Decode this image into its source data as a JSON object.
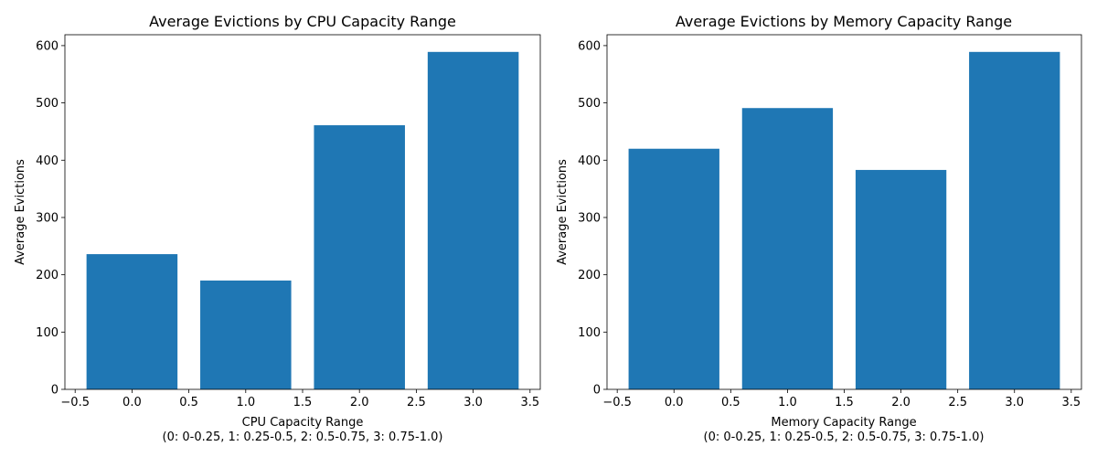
{
  "colors": {
    "bar": "#1f77b4",
    "axis": "#000000",
    "background": "#ffffff"
  },
  "chart_data": [
    {
      "type": "bar",
      "title": "Average Evictions by CPU Capacity Range",
      "xlabel": "CPU Capacity Range",
      "xlabel_line2": "(0: 0-0.25, 1: 0.25-0.5, 2: 0.5-0.75, 3: 0.75-1.0)",
      "ylabel": "Average Evictions",
      "x": [
        0,
        1,
        2,
        3
      ],
      "values": [
        236,
        190,
        461,
        589
      ],
      "bar_width": 0.8,
      "xlim": [
        -0.59,
        3.59
      ],
      "ylim": [
        0,
        619
      ],
      "xticks": [
        -0.5,
        0.0,
        0.5,
        1.0,
        1.5,
        2.0,
        2.5,
        3.0,
        3.5
      ],
      "xtick_labels": [
        "−0.5",
        "0.0",
        "0.5",
        "1.0",
        "1.5",
        "2.0",
        "2.5",
        "3.0",
        "3.5"
      ],
      "yticks": [
        0,
        100,
        200,
        300,
        400,
        500,
        600
      ],
      "ytick_labels": [
        "0",
        "100",
        "200",
        "300",
        "400",
        "500",
        "600"
      ],
      "grid": false,
      "legend": "none"
    },
    {
      "type": "bar",
      "title": "Average Evictions by Memory Capacity Range",
      "xlabel": "Memory Capacity Range",
      "xlabel_line2": "(0: 0-0.25, 1: 0.25-0.5, 2: 0.5-0.75, 3: 0.75-1.0)",
      "ylabel": "Average Evictions",
      "x": [
        0,
        1,
        2,
        3
      ],
      "values": [
        420,
        491,
        383,
        589
      ],
      "bar_width": 0.8,
      "xlim": [
        -0.59,
        3.59
      ],
      "ylim": [
        0,
        619
      ],
      "xticks": [
        -0.5,
        0.0,
        0.5,
        1.0,
        1.5,
        2.0,
        2.5,
        3.0,
        3.5
      ],
      "xtick_labels": [
        "−0.5",
        "0.0",
        "0.5",
        "1.0",
        "1.5",
        "2.0",
        "2.5",
        "3.0",
        "3.5"
      ],
      "yticks": [
        0,
        100,
        200,
        300,
        400,
        500,
        600
      ],
      "ytick_labels": [
        "0",
        "100",
        "200",
        "300",
        "400",
        "500",
        "600"
      ],
      "grid": false,
      "legend": "none"
    }
  ]
}
